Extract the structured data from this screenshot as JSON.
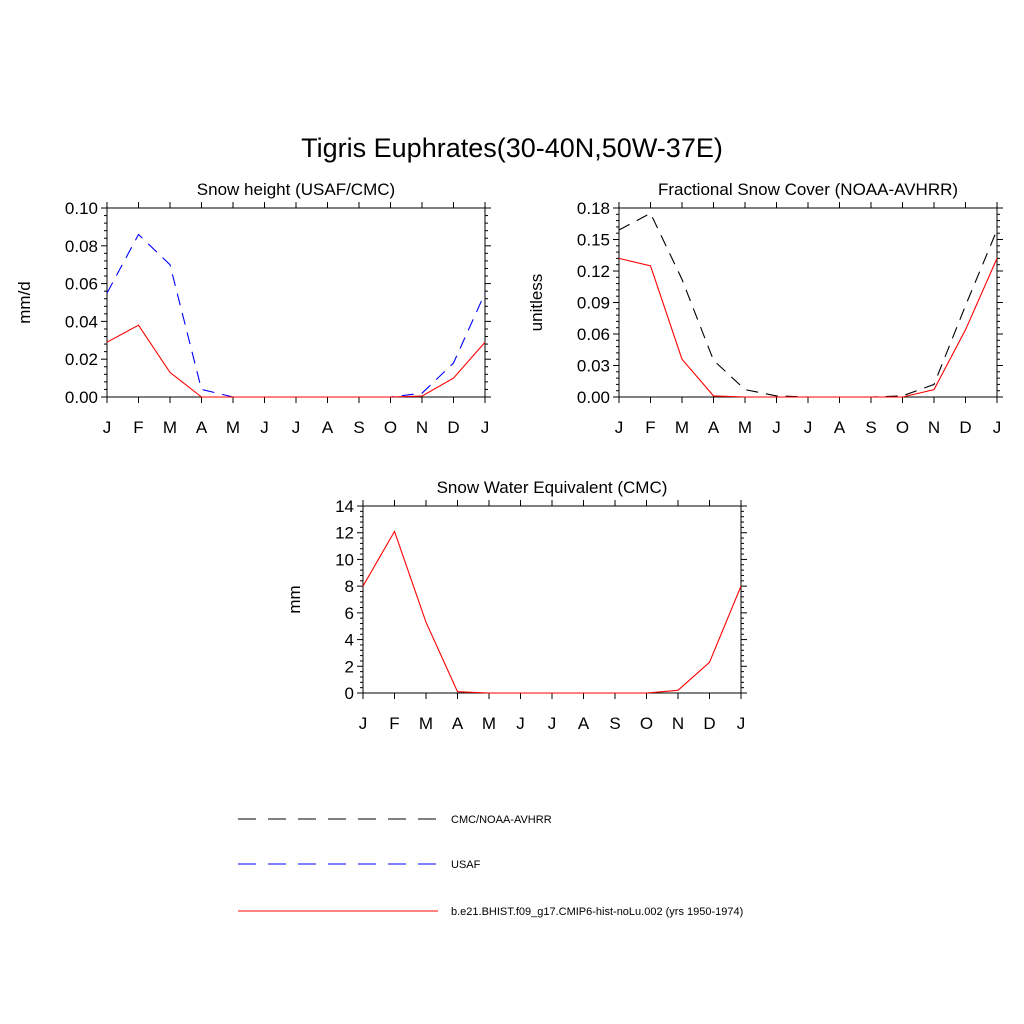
{
  "figure": {
    "title": "Tigris Euphrates(30-40N,50W-37E)"
  },
  "legend": {
    "items": [
      {
        "label": "CMC/NOAA-AVHRR",
        "color": "#000000",
        "dash": "dashed"
      },
      {
        "label": "USAF",
        "color": "#0000ff",
        "dash": "dashed"
      },
      {
        "label": "b.e21.BHIST.f09_g17.CMIP6-hist-noLu.002 (yrs 1950-1974)",
        "color": "#ff0000",
        "dash": "solid"
      }
    ]
  },
  "chart_data": [
    {
      "type": "line",
      "title": "Snow height (USAF/CMC)",
      "ylabel": "mm/d",
      "xlabel": "",
      "categories": [
        "J",
        "F",
        "M",
        "A",
        "M",
        "J",
        "J",
        "A",
        "S",
        "O",
        "N",
        "D",
        "J"
      ],
      "ylim": [
        0,
        0.1
      ],
      "yticks": [
        "0.00",
        "0.02",
        "0.04",
        "0.06",
        "0.08",
        "0.10"
      ],
      "series": [
        {
          "name": "CMC/NOAA-AVHRR",
          "color": "#000000",
          "dash": "dashed",
          "values": [
            0,
            0,
            0,
            0,
            0,
            0,
            0,
            0,
            0,
            0,
            0,
            0,
            0
          ]
        },
        {
          "name": "USAF",
          "color": "#0000ff",
          "dash": "dashed",
          "values": [
            0.055,
            0.086,
            0.07,
            0.004,
            0.0,
            0.0,
            0.0,
            0.0,
            0.0,
            0.0,
            0.002,
            0.018,
            0.055
          ]
        },
        {
          "name": "b.e21.BHIST.f09_g17.CMIP6-hist-noLu.002 (yrs 1950-1974)",
          "color": "#ff0000",
          "dash": "solid",
          "values": [
            0.029,
            0.038,
            0.013,
            0.0,
            0.0,
            0.0,
            0.0,
            0.0,
            0.0,
            0.0,
            0.0005,
            0.01,
            0.029
          ]
        }
      ]
    },
    {
      "type": "line",
      "title": "Fractional Snow Cover (NOAA-AVHRR)",
      "ylabel": "unitless",
      "xlabel": "",
      "categories": [
        "J",
        "F",
        "M",
        "A",
        "M",
        "J",
        "J",
        "A",
        "S",
        "O",
        "N",
        "D",
        "J"
      ],
      "ylim": [
        0,
        0.18
      ],
      "yticks": [
        "0.00",
        "0.03",
        "0.06",
        "0.09",
        "0.12",
        "0.15",
        "0.18"
      ],
      "series": [
        {
          "name": "CMC/NOAA-AVHRR",
          "color": "#000000",
          "dash": "dashed",
          "values": [
            0.159,
            0.175,
            0.112,
            0.035,
            0.007,
            0.001,
            0.0,
            0.0,
            0.0,
            0.001,
            0.012,
            0.087,
            0.159
          ]
        },
        {
          "name": "b.e21.BHIST.f09_g17.CMIP6-hist-noLu.002 (yrs 1950-1974)",
          "color": "#ff0000",
          "dash": "solid",
          "values": [
            0.132,
            0.125,
            0.036,
            0.001,
            0.0,
            0.0,
            0.0,
            0.0,
            0.0,
            0.0,
            0.007,
            0.064,
            0.132
          ]
        }
      ]
    },
    {
      "type": "line",
      "title": "Snow Water Equivalent (CMC)",
      "ylabel": "mm",
      "xlabel": "",
      "categories": [
        "J",
        "F",
        "M",
        "A",
        "M",
        "J",
        "J",
        "A",
        "S",
        "O",
        "N",
        "D",
        "J"
      ],
      "ylim": [
        0,
        14
      ],
      "yticks": [
        "0",
        "2",
        "4",
        "6",
        "8",
        "10",
        "12",
        "14"
      ],
      "series": [
        {
          "name": "CMC/NOAA-AVHRR",
          "color": "#000000",
          "dash": "dashed",
          "values": [
            0,
            0,
            0,
            0,
            0,
            0,
            0,
            0,
            0,
            0,
            0,
            0,
            0
          ]
        },
        {
          "name": "b.e21.BHIST.f09_g17.CMIP6-hist-noLu.002 (yrs 1950-1974)",
          "color": "#ff0000",
          "dash": "solid",
          "values": [
            8.0,
            12.1,
            5.3,
            0.1,
            0.0,
            0.0,
            0.0,
            0.0,
            0.0,
            0.0,
            0.2,
            2.3,
            8.0
          ]
        }
      ]
    }
  ]
}
